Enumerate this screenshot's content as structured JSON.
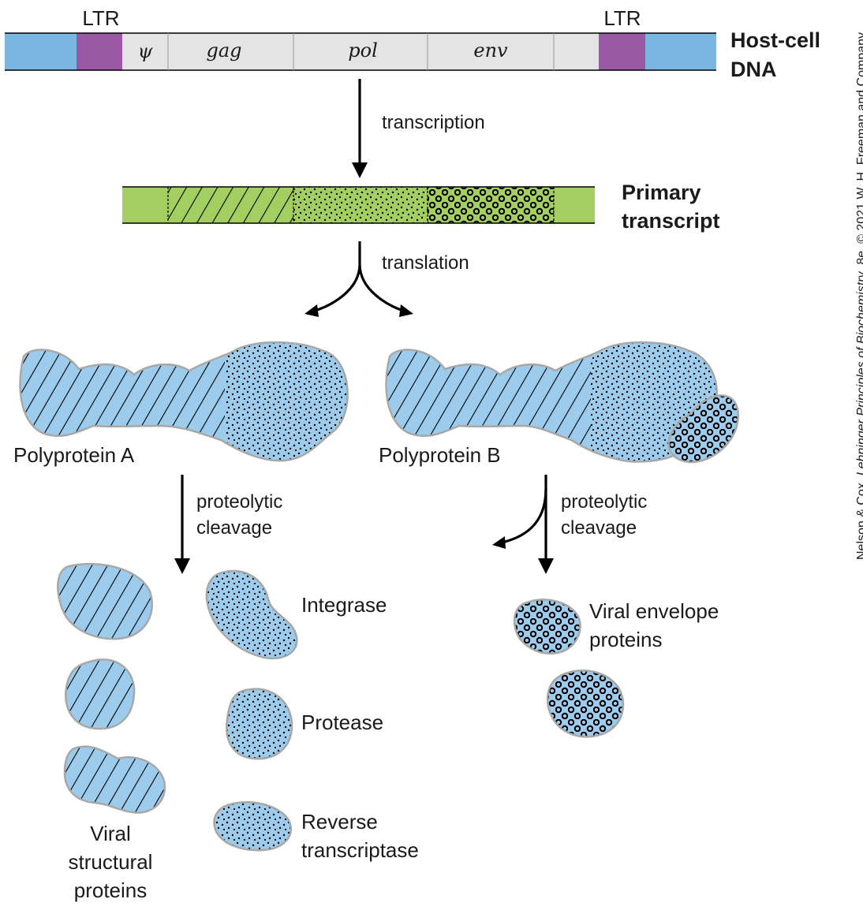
{
  "dna": {
    "ltr_left_label": "LTR",
    "ltr_right_label": "LTR",
    "psi_label": "ψ",
    "gag_label": "gag",
    "pol_label": "pol",
    "env_label": "env",
    "host_label_line1": "Host-cell",
    "host_label_line2": "DNA"
  },
  "steps": {
    "transcription": "transcription",
    "translation": "translation",
    "cleavage_a_line1": "proteolytic",
    "cleavage_a_line2": "cleavage",
    "cleavage_b_line1": "proteolytic",
    "cleavage_b_line2": "cleavage"
  },
  "transcript": {
    "label_line1": "Primary",
    "label_line2": "transcript"
  },
  "polyproteins": {
    "a_label": "Polyprotein A",
    "b_label": "Polyprotein B"
  },
  "products": {
    "structural_line1": "Viral",
    "structural_line2": "structural",
    "structural_line3": "proteins",
    "integrase": "Integrase",
    "protease": "Protease",
    "rt_line1": "Reverse",
    "rt_line2": "transcriptase",
    "envelope_line1": "Viral envelope",
    "envelope_line2": "proteins"
  },
  "credit": {
    "prefix": "Nelson & Cox, ",
    "book": "Lehninger Principles of Biochemistry",
    "suffix": ", 8e, © 2021 W. H. Freeman and Company"
  },
  "colors": {
    "host_dna": "#7ab6e2",
    "ltr": "#9b59a5",
    "viral_gene": "#e4e4e4",
    "transcript": "#a3cf62",
    "protein": "#9ccbec",
    "outline": "#a8a8a8"
  }
}
